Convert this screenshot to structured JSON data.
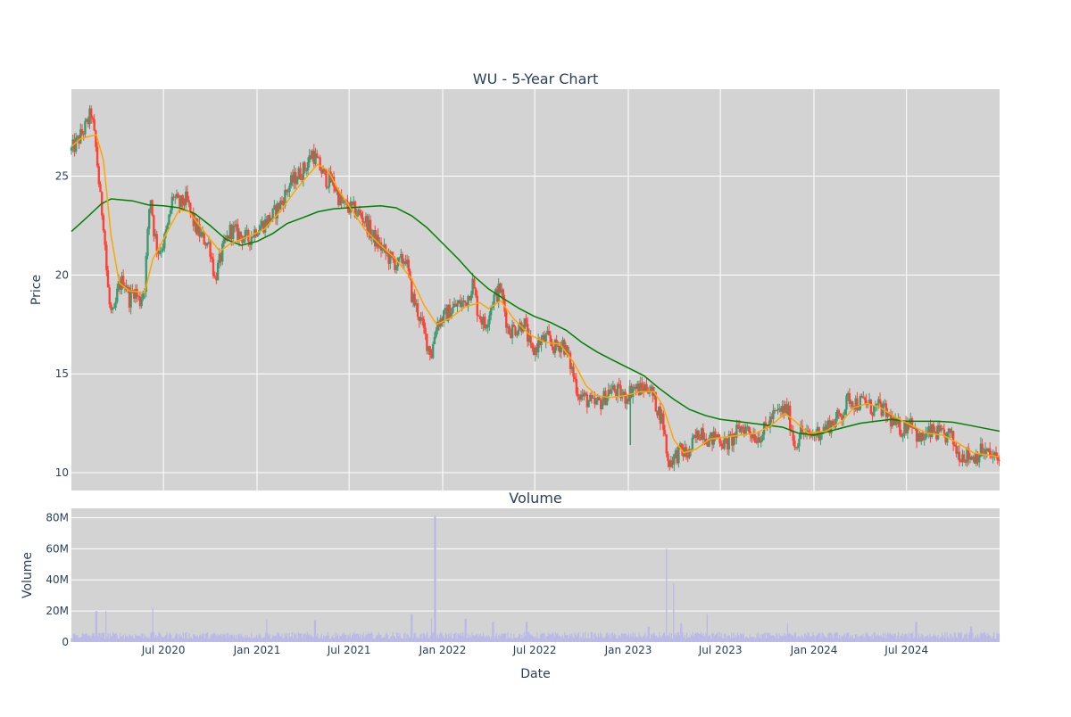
{
  "chart_data": [
    {
      "type": "candlestick",
      "title": "WU - 5-Year Chart",
      "xlabel": "",
      "ylabel": "Price",
      "ylim": [
        9.1,
        29.4
      ],
      "yticks": [
        10,
        15,
        20,
        25
      ],
      "grid": true,
      "legend": "none",
      "x_range": [
        "2020-01-02",
        "2024-12-31"
      ],
      "colors": {
        "up": "#3d9970",
        "down": "#ff4136",
        "ma_short": "#ffa500",
        "ma_long": "#008000",
        "plot_bg": "#d3d3d3"
      },
      "close_path": [
        [
          "2020-01-02",
          26.3
        ],
        [
          "2020-01-15",
          26.8
        ],
        [
          "2020-02-01",
          27.6
        ],
        [
          "2020-02-10",
          28.2
        ],
        [
          "2020-02-20",
          26.2
        ],
        [
          "2020-02-28",
          23.8
        ],
        [
          "2020-03-06",
          22.5
        ],
        [
          "2020-03-12",
          19.8
        ],
        [
          "2020-03-18",
          18.2
        ],
        [
          "2020-03-25",
          17.8
        ],
        [
          "2020-04-03",
          19.4
        ],
        [
          "2020-04-15",
          19.8
        ],
        [
          "2020-04-25",
          18.8
        ],
        [
          "2020-05-05",
          19.3
        ],
        [
          "2020-05-15",
          18.6
        ],
        [
          "2020-05-25",
          19.5
        ],
        [
          "2020-06-05",
          24.2
        ],
        [
          "2020-06-12",
          22.3
        ],
        [
          "2020-06-20",
          21.2
        ],
        [
          "2020-07-01",
          21.6
        ],
        [
          "2020-07-10",
          22.5
        ],
        [
          "2020-07-20",
          24.1
        ],
        [
          "2020-07-31",
          23.5
        ],
        [
          "2020-08-15",
          23.8
        ],
        [
          "2020-08-31",
          22.5
        ],
        [
          "2020-09-15",
          21.9
        ],
        [
          "2020-09-30",
          21.5
        ],
        [
          "2020-10-10",
          19.8
        ],
        [
          "2020-10-25",
          21.2
        ],
        [
          "2020-11-10",
          22.3
        ],
        [
          "2020-11-30",
          22.0
        ],
        [
          "2020-12-15",
          21.8
        ],
        [
          "2021-01-01",
          22.4
        ],
        [
          "2021-01-15",
          22.6
        ],
        [
          "2021-02-01",
          23.0
        ],
        [
          "2021-02-20",
          23.8
        ],
        [
          "2021-03-05",
          24.5
        ],
        [
          "2021-03-20",
          25.0
        ],
        [
          "2021-04-05",
          25.4
        ],
        [
          "2021-04-20",
          26.2
        ],
        [
          "2021-05-01",
          25.6
        ],
        [
          "2021-05-15",
          24.9
        ],
        [
          "2021-05-31",
          24.7
        ],
        [
          "2021-06-15",
          23.6
        ],
        [
          "2021-07-01",
          23.4
        ],
        [
          "2021-07-15",
          23.2
        ],
        [
          "2021-08-01",
          22.8
        ],
        [
          "2021-08-15",
          22.0
        ],
        [
          "2021-09-01",
          21.4
        ],
        [
          "2021-09-20",
          20.8
        ],
        [
          "2021-10-05",
          20.5
        ],
        [
          "2021-10-20",
          20.9
        ],
        [
          "2021-11-01",
          19.0
        ],
        [
          "2021-11-15",
          18.0
        ],
        [
          "2021-12-01",
          16.6
        ],
        [
          "2021-12-10",
          16.0
        ],
        [
          "2021-12-20",
          17.6
        ],
        [
          "2022-01-01",
          17.8
        ],
        [
          "2022-01-15",
          18.2
        ],
        [
          "2022-01-31",
          18.5
        ],
        [
          "2022-02-15",
          18.6
        ],
        [
          "2022-03-01",
          19.6
        ],
        [
          "2022-03-10",
          18.3
        ],
        [
          "2022-03-25",
          17.4
        ],
        [
          "2022-04-10",
          18.8
        ],
        [
          "2022-04-25",
          19.3
        ],
        [
          "2022-05-10",
          17.2
        ],
        [
          "2022-05-25",
          17.3
        ],
        [
          "2022-06-10",
          17.6
        ],
        [
          "2022-06-25",
          16.0
        ],
        [
          "2022-07-10",
          16.6
        ],
        [
          "2022-07-25",
          16.8
        ],
        [
          "2022-08-10",
          16.3
        ],
        [
          "2022-08-25",
          16.6
        ],
        [
          "2022-09-10",
          15.4
        ],
        [
          "2022-09-25",
          14.0
        ],
        [
          "2022-10-10",
          13.7
        ],
        [
          "2022-10-25",
          13.4
        ],
        [
          "2022-11-10",
          13.6
        ],
        [
          "2022-11-25",
          14.2
        ],
        [
          "2022-12-10",
          14.1
        ],
        [
          "2022-12-25",
          13.8
        ],
        [
          "2023-01-10",
          14.3
        ],
        [
          "2023-01-25",
          14.2
        ],
        [
          "2023-02-10",
          14.4
        ],
        [
          "2023-02-25",
          13.4
        ],
        [
          "2023-03-10",
          12.6
        ],
        [
          "2023-03-20",
          10.5
        ],
        [
          "2023-04-01",
          10.8
        ],
        [
          "2023-04-15",
          11.1
        ],
        [
          "2023-04-30",
          10.9
        ],
        [
          "2023-05-10",
          11.6
        ],
        [
          "2023-05-25",
          12.2
        ],
        [
          "2023-06-10",
          11.6
        ],
        [
          "2023-06-25",
          11.9
        ],
        [
          "2023-07-10",
          11.4
        ],
        [
          "2023-07-25",
          11.7
        ],
        [
          "2023-08-10",
          12.3
        ],
        [
          "2023-08-25",
          12.2
        ],
        [
          "2023-09-10",
          11.8
        ],
        [
          "2023-09-25",
          12.1
        ],
        [
          "2023-10-10",
          12.8
        ],
        [
          "2023-10-25",
          13.1
        ],
        [
          "2023-11-10",
          13.2
        ],
        [
          "2023-11-25",
          11.3
        ],
        [
          "2023-12-05",
          12.1
        ],
        [
          "2023-12-20",
          11.8
        ],
        [
          "2024-01-05",
          12.0
        ],
        [
          "2024-01-25",
          12.3
        ],
        [
          "2024-02-10",
          12.6
        ],
        [
          "2024-02-25",
          13.0
        ],
        [
          "2024-03-10",
          13.8
        ],
        [
          "2024-03-25",
          13.5
        ],
        [
          "2024-04-10",
          13.6
        ],
        [
          "2024-04-25",
          13.2
        ],
        [
          "2024-05-10",
          13.3
        ],
        [
          "2024-05-25",
          12.9
        ],
        [
          "2024-06-10",
          12.3
        ],
        [
          "2024-06-25",
          12.2
        ],
        [
          "2024-07-10",
          12.8
        ],
        [
          "2024-07-25",
          11.6
        ],
        [
          "2024-08-10",
          11.9
        ],
        [
          "2024-08-25",
          12.1
        ],
        [
          "2024-09-10",
          11.8
        ],
        [
          "2024-09-25",
          11.9
        ],
        [
          "2024-10-10",
          11.0
        ],
        [
          "2024-10-25",
          10.9
        ],
        [
          "2024-11-10",
          10.8
        ],
        [
          "2024-11-25",
          11.1
        ],
        [
          "2024-12-10",
          10.9
        ],
        [
          "2024-12-31",
          10.6
        ]
      ],
      "ma_short": [
        [
          "2020-01-02",
          26.5
        ],
        [
          "2020-01-20",
          26.9
        ],
        [
          "2020-02-20",
          27.1
        ],
        [
          "2020-03-05",
          25.8
        ],
        [
          "2020-03-20",
          22.0
        ],
        [
          "2020-04-05",
          19.6
        ],
        [
          "2020-04-25",
          19.2
        ],
        [
          "2020-05-25",
          19.1
        ],
        [
          "2020-06-10",
          20.8
        ],
        [
          "2020-06-25",
          21.5
        ],
        [
          "2020-07-15",
          22.5
        ],
        [
          "2020-08-01",
          23.3
        ],
        [
          "2020-08-20",
          23.2
        ],
        [
          "2020-09-10",
          22.5
        ],
        [
          "2020-10-01",
          21.8
        ],
        [
          "2020-10-20",
          21.2
        ],
        [
          "2020-11-10",
          21.6
        ],
        [
          "2020-12-10",
          21.9
        ],
        [
          "2021-01-15",
          22.3
        ],
        [
          "2021-02-15",
          23.2
        ],
        [
          "2021-03-15",
          24.2
        ],
        [
          "2021-04-10",
          25.0
        ],
        [
          "2021-04-30",
          25.6
        ],
        [
          "2021-05-20",
          25.3
        ],
        [
          "2021-06-10",
          24.3
        ],
        [
          "2021-07-01",
          23.5
        ],
        [
          "2021-08-01",
          22.3
        ],
        [
          "2021-09-01",
          21.5
        ],
        [
          "2021-10-01",
          20.8
        ],
        [
          "2021-11-01",
          19.8
        ],
        [
          "2021-11-25",
          18.5
        ],
        [
          "2021-12-20",
          17.5
        ],
        [
          "2022-01-15",
          17.8
        ],
        [
          "2022-02-15",
          18.4
        ],
        [
          "2022-03-15",
          18.6
        ],
        [
          "2022-04-01",
          18.3
        ],
        [
          "2022-04-25",
          18.7
        ],
        [
          "2022-05-20",
          17.8
        ],
        [
          "2022-06-20",
          17.0
        ],
        [
          "2022-07-20",
          16.6
        ],
        [
          "2022-08-20",
          16.5
        ],
        [
          "2022-09-15",
          15.6
        ],
        [
          "2022-10-10",
          14.4
        ],
        [
          "2022-10-31",
          13.9
        ],
        [
          "2022-11-25",
          13.8
        ],
        [
          "2022-12-25",
          13.9
        ],
        [
          "2023-01-25",
          14.1
        ],
        [
          "2023-02-20",
          14.1
        ],
        [
          "2023-03-10",
          13.4
        ],
        [
          "2023-03-31",
          11.7
        ],
        [
          "2023-04-20",
          11.0
        ],
        [
          "2023-05-15",
          11.2
        ],
        [
          "2023-06-10",
          11.7
        ],
        [
          "2023-07-10",
          11.8
        ],
        [
          "2023-08-10",
          11.9
        ],
        [
          "2023-09-10",
          12.0
        ],
        [
          "2023-10-10",
          12.4
        ],
        [
          "2023-11-05",
          13.0
        ],
        [
          "2023-11-25",
          12.6
        ],
        [
          "2023-12-20",
          12.0
        ],
        [
          "2024-01-25",
          12.1
        ],
        [
          "2024-02-25",
          12.6
        ],
        [
          "2024-03-20",
          13.3
        ],
        [
          "2024-04-15",
          13.5
        ],
        [
          "2024-05-10",
          13.3
        ],
        [
          "2024-06-10",
          12.8
        ],
        [
          "2024-07-10",
          12.4
        ],
        [
          "2024-08-10",
          12.0
        ],
        [
          "2024-09-10",
          11.9
        ],
        [
          "2024-10-10",
          11.5
        ],
        [
          "2024-11-10",
          11.0
        ],
        [
          "2024-12-31",
          10.8
        ]
      ],
      "ma_long": [
        [
          "2020-01-02",
          22.2
        ],
        [
          "2020-02-01",
          22.9
        ],
        [
          "2020-03-01",
          23.6
        ],
        [
          "2020-03-20",
          23.85
        ],
        [
          "2020-05-01",
          23.75
        ],
        [
          "2020-06-01",
          23.55
        ],
        [
          "2020-07-01",
          23.5
        ],
        [
          "2020-08-01",
          23.4
        ],
        [
          "2020-09-01",
          23.1
        ],
        [
          "2020-10-01",
          22.5
        ],
        [
          "2020-11-01",
          21.8
        ],
        [
          "2020-12-01",
          21.5
        ],
        [
          "2021-01-01",
          21.7
        ],
        [
          "2021-02-01",
          22.1
        ],
        [
          "2021-03-01",
          22.6
        ],
        [
          "2021-04-01",
          22.9
        ],
        [
          "2021-05-01",
          23.2
        ],
        [
          "2021-06-01",
          23.35
        ],
        [
          "2021-07-01",
          23.4
        ],
        [
          "2021-08-01",
          23.45
        ],
        [
          "2021-09-01",
          23.5
        ],
        [
          "2021-10-01",
          23.4
        ],
        [
          "2021-11-01",
          23.0
        ],
        [
          "2021-12-01",
          22.4
        ],
        [
          "2022-01-01",
          21.6
        ],
        [
          "2022-02-01",
          20.8
        ],
        [
          "2022-03-01",
          20.0
        ],
        [
          "2022-04-01",
          19.3
        ],
        [
          "2022-05-01",
          18.8
        ],
        [
          "2022-06-01",
          18.3
        ],
        [
          "2022-07-01",
          17.9
        ],
        [
          "2022-08-01",
          17.6
        ],
        [
          "2022-09-01",
          17.2
        ],
        [
          "2022-10-01",
          16.6
        ],
        [
          "2022-11-01",
          16.1
        ],
        [
          "2022-12-01",
          15.7
        ],
        [
          "2023-01-01",
          15.3
        ],
        [
          "2023-02-01",
          14.9
        ],
        [
          "2023-03-01",
          14.3
        ],
        [
          "2023-04-01",
          13.7
        ],
        [
          "2023-05-01",
          13.2
        ],
        [
          "2023-06-01",
          12.9
        ],
        [
          "2023-07-01",
          12.7
        ],
        [
          "2023-08-01",
          12.6
        ],
        [
          "2023-09-01",
          12.5
        ],
        [
          "2023-10-01",
          12.4
        ],
        [
          "2023-11-01",
          12.3
        ],
        [
          "2023-12-01",
          12.0
        ],
        [
          "2024-01-01",
          11.9
        ],
        [
          "2024-02-01",
          12.1
        ],
        [
          "2024-03-01",
          12.3
        ],
        [
          "2024-04-01",
          12.5
        ],
        [
          "2024-05-01",
          12.6
        ],
        [
          "2024-06-01",
          12.7
        ],
        [
          "2024-07-01",
          12.6
        ],
        [
          "2024-08-01",
          12.6
        ],
        [
          "2024-09-01",
          12.6
        ],
        [
          "2024-10-01",
          12.55
        ],
        [
          "2024-11-01",
          12.4
        ],
        [
          "2024-12-01",
          12.25
        ],
        [
          "2024-12-31",
          12.1
        ]
      ],
      "wicks": [
        [
          "2023-01-05",
          11.4,
          14.3
        ]
      ]
    },
    {
      "type": "bar",
      "title": "Volume",
      "xlabel": "Date",
      "ylabel": "Volume",
      "ylim": [
        0,
        86000000
      ],
      "yticks": [
        0,
        20000000,
        40000000,
        60000000,
        80000000
      ],
      "ytick_labels": [
        "0",
        "20M",
        "40M",
        "60M",
        "80M"
      ],
      "xticks": [
        "2020-07-01",
        "2021-01-01",
        "2021-07-01",
        "2022-01-01",
        "2022-07-01",
        "2023-01-01",
        "2023-07-01",
        "2024-01-01",
        "2024-07-01"
      ],
      "xtick_labels": [
        "Jul 2020",
        "Jan 2021",
        "Jul 2021",
        "Jan 2022",
        "Jul 2022",
        "Jan 2023",
        "Jul 2023",
        "Jan 2024",
        "Jul 2024"
      ],
      "bar_color": "#b9b9e8",
      "baseline_volume": 5000000,
      "spikes": [
        [
          "2020-02-20",
          20000000
        ],
        [
          "2020-03-10",
          20000000
        ],
        [
          "2020-06-10",
          22000000
        ],
        [
          "2021-01-20",
          15000000
        ],
        [
          "2021-04-25",
          14000000
        ],
        [
          "2021-11-01",
          18000000
        ],
        [
          "2021-12-10",
          15000000
        ],
        [
          "2021-12-17",
          81000000
        ],
        [
          "2022-02-15",
          15000000
        ],
        [
          "2022-04-10",
          13000000
        ],
        [
          "2022-06-15",
          13000000
        ],
        [
          "2023-02-10",
          10000000
        ],
        [
          "2023-03-17",
          60000000
        ],
        [
          "2023-03-31",
          38000000
        ],
        [
          "2023-04-15",
          12000000
        ],
        [
          "2023-06-05",
          18000000
        ],
        [
          "2023-11-10",
          12000000
        ],
        [
          "2024-07-20",
          13000000
        ],
        [
          "2024-11-05",
          10000000
        ]
      ]
    }
  ]
}
